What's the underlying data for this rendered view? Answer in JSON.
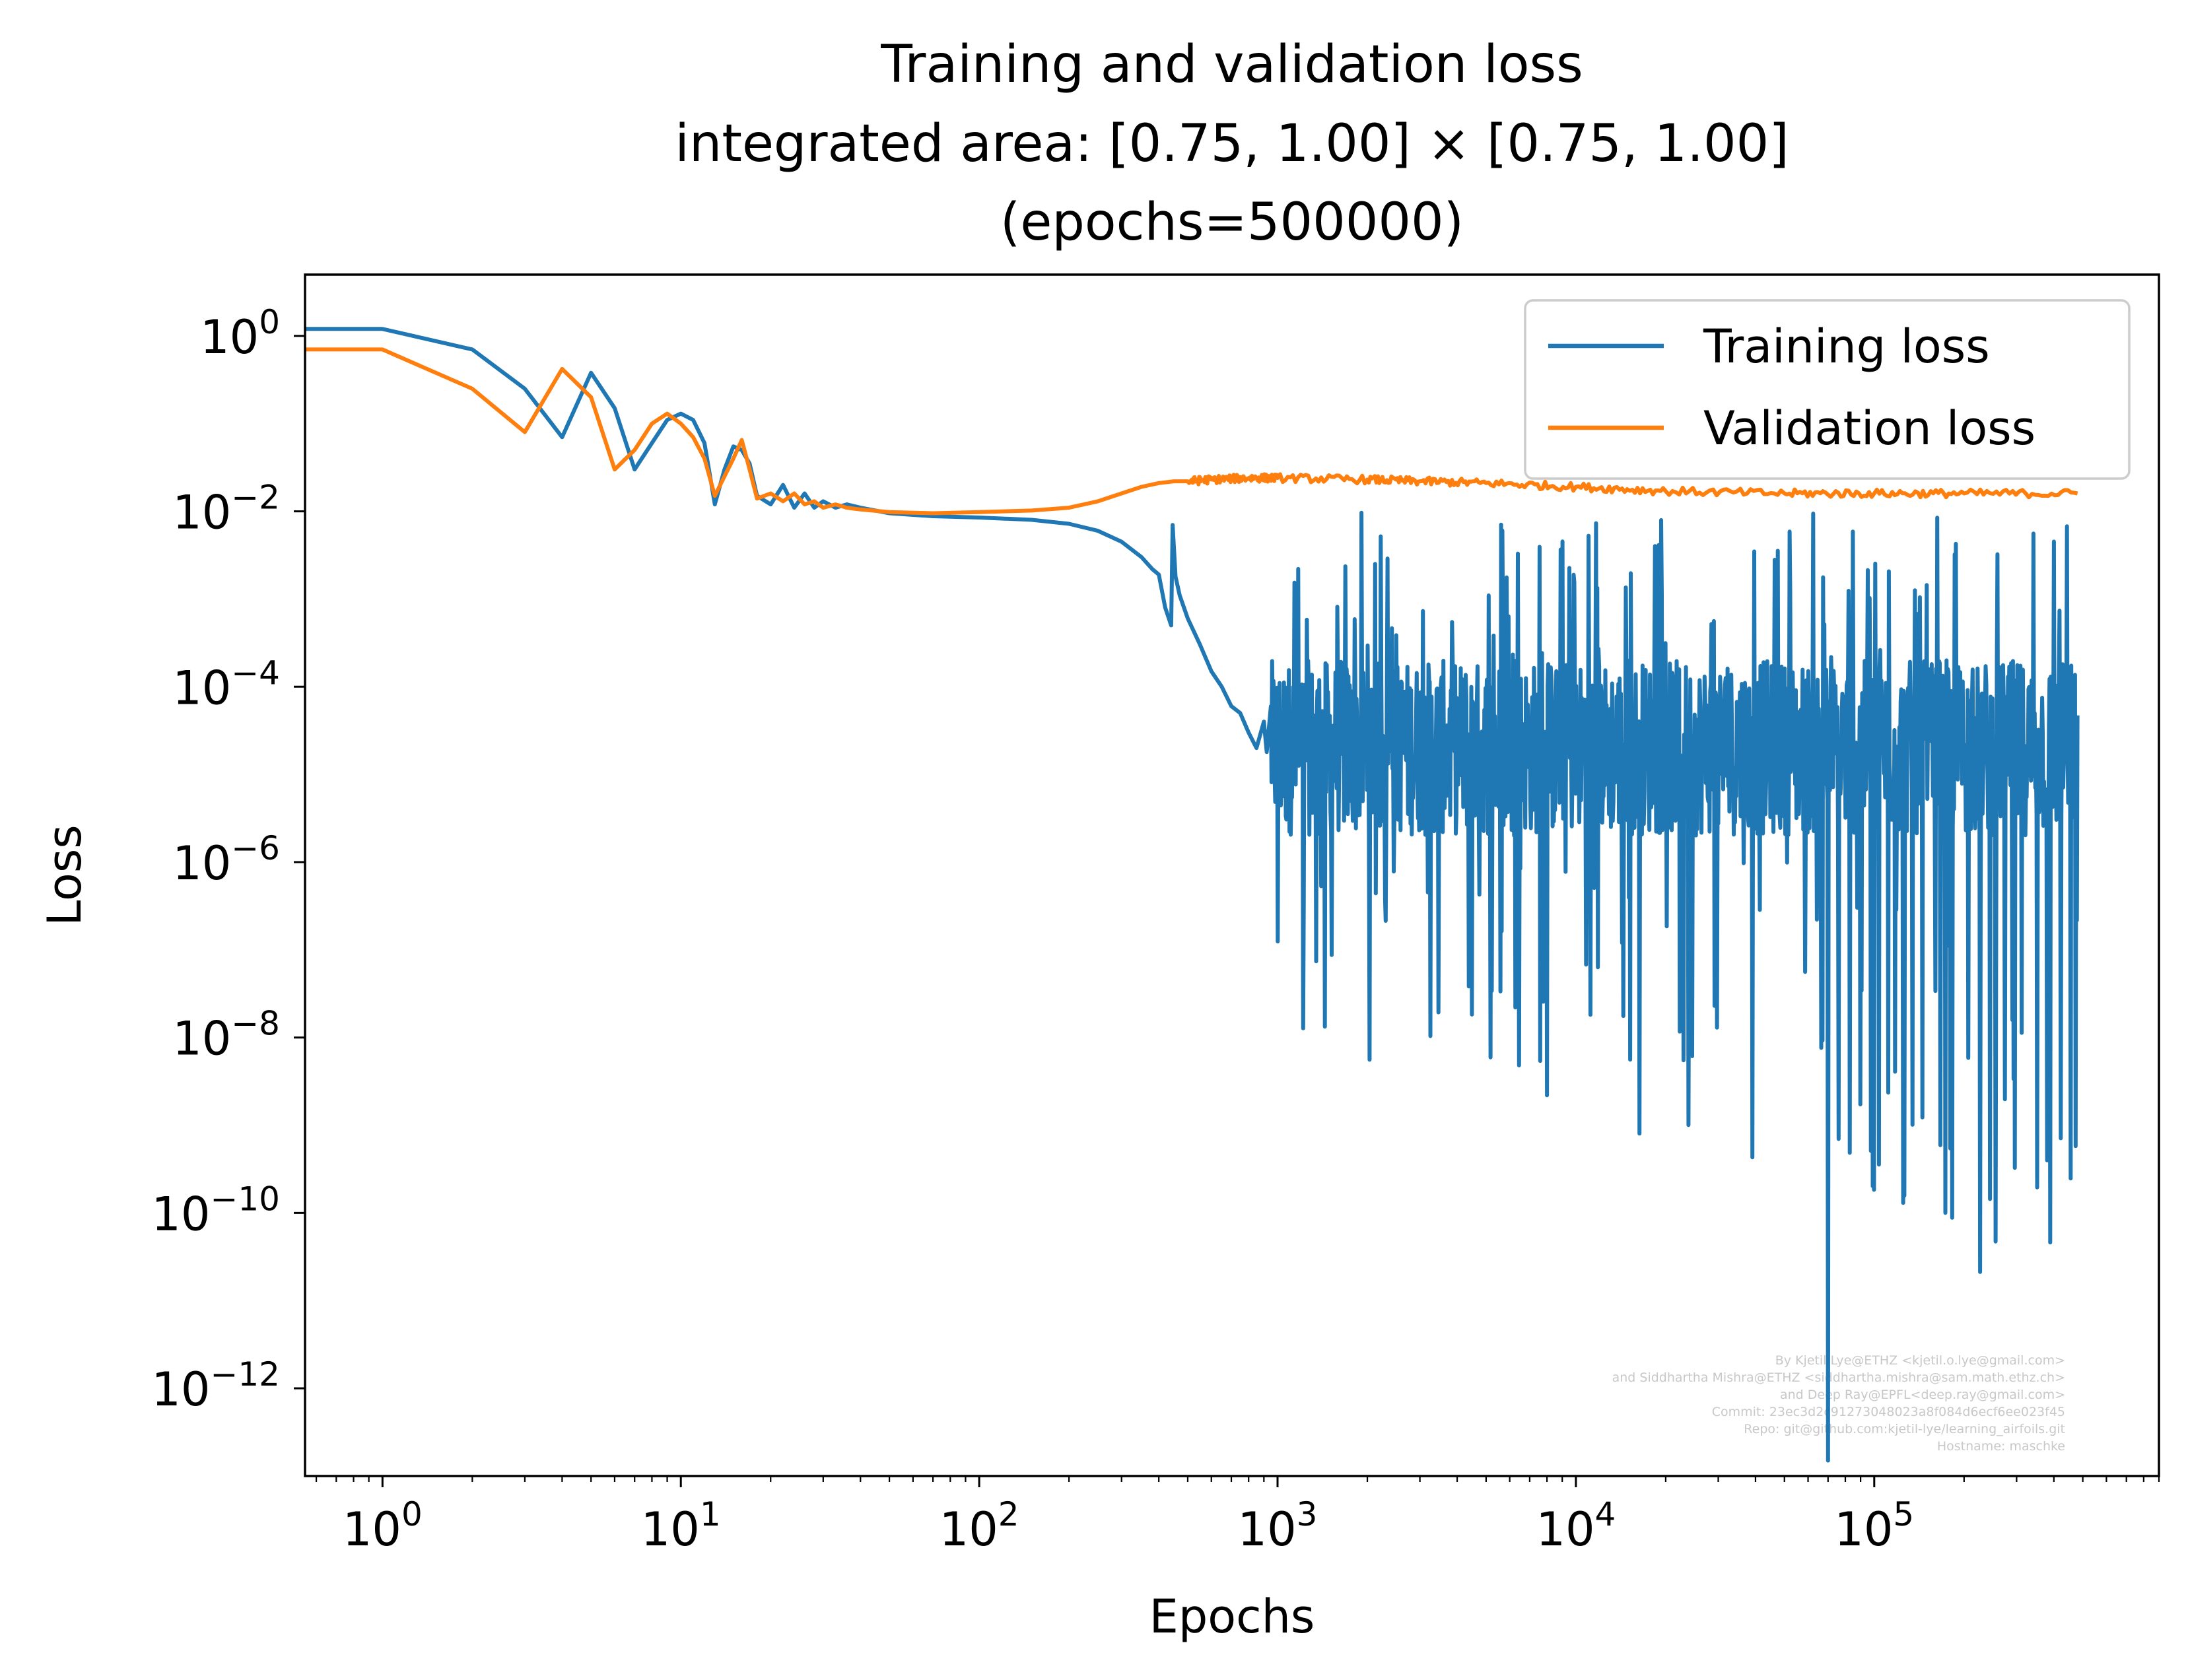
{
  "chart_data": {
    "type": "line",
    "title_lines": [
      "Training and validation loss",
      "integrated area: [0.75, 1.00] × [0.75, 1.00]",
      "(epochs=500000)"
    ],
    "xlabel": "Epochs",
    "ylabel": "Loss",
    "xscale": "log",
    "yscale": "log",
    "xlim": [
      0.55,
      900000
    ],
    "ylim": [
      1e-13,
      5
    ],
    "x_ticks": [
      {
        "value": 1,
        "base": "10",
        "exp": "0"
      },
      {
        "value": 10,
        "base": "10",
        "exp": "1"
      },
      {
        "value": 100,
        "base": "10",
        "exp": "2"
      },
      {
        "value": 1000,
        "base": "10",
        "exp": "3"
      },
      {
        "value": 10000,
        "base": "10",
        "exp": "4"
      },
      {
        "value": 100000,
        "base": "10",
        "exp": "5"
      }
    ],
    "y_ticks": [
      {
        "value": 1,
        "base": "10",
        "exp": "0"
      },
      {
        "value": 0.01,
        "base": "10",
        "exp": "−2"
      },
      {
        "value": 0.0001,
        "base": "10",
        "exp": "−4"
      },
      {
        "value": 1e-06,
        "base": "10",
        "exp": "−6"
      },
      {
        "value": 1e-08,
        "base": "10",
        "exp": "−8"
      },
      {
        "value": 1e-10,
        "base": "10",
        "exp": "−10"
      },
      {
        "value": 1e-12,
        "base": "10",
        "exp": "−12"
      }
    ],
    "grid": false,
    "legend_position": "top-right",
    "series": [
      {
        "name": "Training loss",
        "color": "#1f77b4",
        "points": [
          [
            0.55,
            1.2
          ],
          [
            1,
            1.2
          ],
          [
            2,
            0.7
          ],
          [
            3,
            0.25
          ],
          [
            4,
            0.07
          ],
          [
            5,
            0.38
          ],
          [
            6,
            0.15
          ],
          [
            7,
            0.03
          ],
          [
            8,
            0.06
          ],
          [
            9,
            0.11
          ],
          [
            10,
            0.13
          ],
          [
            11,
            0.11
          ],
          [
            12,
            0.06
          ],
          [
            13,
            0.012
          ],
          [
            14,
            0.03
          ],
          [
            15,
            0.055
          ],
          [
            16,
            0.05
          ],
          [
            17,
            0.035
          ],
          [
            18,
            0.015
          ],
          [
            20,
            0.012
          ],
          [
            22,
            0.02
          ],
          [
            24,
            0.011
          ],
          [
            26,
            0.016
          ],
          [
            28,
            0.011
          ],
          [
            30,
            0.013
          ],
          [
            33,
            0.011
          ],
          [
            36,
            0.012
          ],
          [
            40,
            0.011
          ],
          [
            50,
            0.0095
          ],
          [
            70,
            0.0088
          ],
          [
            100,
            0.0085
          ],
          [
            150,
            0.008
          ],
          [
            200,
            0.0072
          ],
          [
            250,
            0.006
          ],
          [
            300,
            0.0045
          ],
          [
            350,
            0.003
          ],
          [
            380,
            0.0022
          ],
          [
            400,
            0.0019
          ],
          [
            420,
            0.0008
          ],
          [
            440,
            0.0005
          ],
          [
            445,
            0.007
          ],
          [
            455,
            0.0018
          ],
          [
            470,
            0.0011
          ],
          [
            500,
            0.0006
          ],
          [
            550,
            0.0003
          ],
          [
            600,
            0.00015
          ],
          [
            650,
            0.0001
          ],
          [
            700,
            6e-05
          ],
          [
            750,
            5e-05
          ],
          [
            800,
            3e-05
          ],
          [
            850,
            2e-05
          ],
          [
            900,
            4e-05
          ],
          [
            920,
            1.8e-05
          ],
          [
            950,
            6e-05
          ]
        ],
        "noise_range": [
          950,
          480000
        ],
        "noise_typical": [
          2e-06,
          0.0002
        ],
        "noise_spike_max": 0.01,
        "noise_spike_min": 1.5e-13
      },
      {
        "name": "Validation loss",
        "color": "#ff7f0e",
        "points": [
          [
            0.55,
            0.7
          ],
          [
            1,
            0.7
          ],
          [
            2,
            0.25
          ],
          [
            3,
            0.08
          ],
          [
            4,
            0.42
          ],
          [
            5,
            0.2
          ],
          [
            6,
            0.03
          ],
          [
            7,
            0.05
          ],
          [
            8,
            0.1
          ],
          [
            9,
            0.13
          ],
          [
            10,
            0.1
          ],
          [
            11,
            0.07
          ],
          [
            12,
            0.04
          ],
          [
            13,
            0.015
          ],
          [
            14,
            0.025
          ],
          [
            15,
            0.04
          ],
          [
            16,
            0.065
          ],
          [
            17,
            0.03
          ],
          [
            18,
            0.014
          ],
          [
            20,
            0.016
          ],
          [
            22,
            0.013
          ],
          [
            24,
            0.016
          ],
          [
            26,
            0.012
          ],
          [
            28,
            0.013
          ],
          [
            30,
            0.011
          ],
          [
            33,
            0.012
          ],
          [
            36,
            0.011
          ],
          [
            40,
            0.0105
          ],
          [
            50,
            0.0098
          ],
          [
            70,
            0.0095
          ],
          [
            100,
            0.0098
          ],
          [
            150,
            0.0102
          ],
          [
            200,
            0.011
          ],
          [
            250,
            0.013
          ],
          [
            300,
            0.016
          ],
          [
            350,
            0.019
          ],
          [
            400,
            0.021
          ],
          [
            450,
            0.022
          ],
          [
            500,
            0.022
          ],
          [
            600,
            0.023
          ],
          [
            800,
            0.024
          ],
          [
            1000,
            0.024
          ],
          [
            2000,
            0.023
          ],
          [
            3000,
            0.022
          ],
          [
            5000,
            0.021
          ],
          [
            10000,
            0.019
          ],
          [
            20000,
            0.017
          ],
          [
            50000,
            0.016
          ],
          [
            100000,
            0.016
          ],
          [
            200000,
            0.016
          ],
          [
            480000,
            0.016
          ]
        ]
      }
    ],
    "credits": [
      "By Kjetil Lye@ETHZ <kjetil.o.lye@gmail.com>",
      "and Siddhartha Mishra@ETHZ <siddhartha.mishra@sam.math.ethz.ch>",
      "and Deep Ray@EPFL<deep.ray@gmail.com>",
      "Commit: 23ec3d2c91273048023a8f084d6ecf6ee023f45",
      "Repo: git@github.com:kjetil-lye/learning_airfoils.git",
      "Hostname: maschke"
    ]
  }
}
